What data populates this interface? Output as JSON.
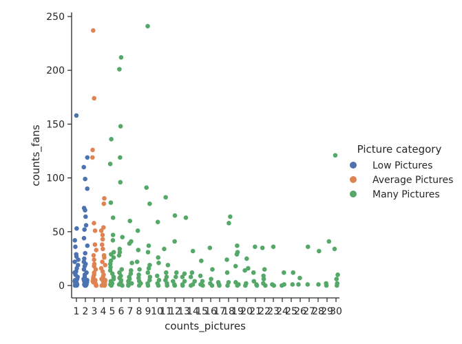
{
  "chart_data": {
    "type": "scatter",
    "xlabel": "counts_pictures",
    "ylabel": "counts_fans",
    "x_categories": [
      "1",
      "2",
      "3",
      "4",
      "5",
      "6",
      "7",
      "8",
      "9",
      "10",
      "11",
      "12",
      "13",
      "14",
      "15",
      "16",
      "17",
      "18",
      "19",
      "20",
      "21",
      "22",
      "23",
      "24",
      "25",
      "26",
      "27",
      "28",
      "29",
      "30"
    ],
    "ylim": [
      -12,
      255
    ],
    "y_ticks": [
      0,
      50,
      100,
      150,
      200,
      250
    ],
    "grid": false,
    "legend": {
      "title": "Picture category",
      "position": "right"
    },
    "colors": {
      "Low Pictures": "#4c72b0",
      "Average Pictures": "#dd8452",
      "Many Pictures": "#55a868"
    },
    "series": [
      {
        "name": "Low Pictures",
        "points": [
          [
            1,
            158
          ],
          [
            1,
            53
          ],
          [
            1,
            42
          ],
          [
            1,
            36
          ],
          [
            1,
            29
          ],
          [
            1,
            27
          ],
          [
            1,
            22
          ],
          [
            1,
            19
          ],
          [
            1,
            16
          ],
          [
            1,
            13
          ],
          [
            1,
            10
          ],
          [
            1,
            8
          ],
          [
            1,
            6
          ],
          [
            1,
            4
          ],
          [
            1,
            3
          ],
          [
            1,
            2
          ],
          [
            1,
            1
          ],
          [
            1,
            0
          ],
          [
            1,
            0
          ],
          [
            1,
            1
          ],
          [
            1,
            5
          ],
          [
            1,
            12
          ],
          [
            1,
            24
          ],
          [
            2,
            119
          ],
          [
            2,
            110
          ],
          [
            2,
            99
          ],
          [
            2,
            90
          ],
          [
            2,
            72
          ],
          [
            2,
            70
          ],
          [
            2,
            64
          ],
          [
            2,
            56
          ],
          [
            2,
            52
          ],
          [
            2,
            44
          ],
          [
            2,
            37
          ],
          [
            2,
            30
          ],
          [
            2,
            25
          ],
          [
            2,
            20
          ],
          [
            2,
            18
          ],
          [
            2,
            15
          ],
          [
            2,
            12
          ],
          [
            2,
            10
          ],
          [
            2,
            8
          ],
          [
            2,
            6
          ],
          [
            2,
            5
          ],
          [
            2,
            4
          ],
          [
            2,
            3
          ],
          [
            2,
            2
          ],
          [
            2,
            1
          ],
          [
            2,
            0
          ],
          [
            2,
            0
          ],
          [
            2,
            1
          ],
          [
            2,
            2
          ],
          [
            2,
            22
          ]
        ]
      },
      {
        "name": "Average Pictures",
        "points": [
          [
            3,
            237
          ],
          [
            3,
            174
          ],
          [
            3,
            126
          ],
          [
            3,
            119
          ],
          [
            3,
            58
          ],
          [
            3,
            51
          ],
          [
            3,
            38
          ],
          [
            3,
            33
          ],
          [
            3,
            28
          ],
          [
            3,
            24
          ],
          [
            3,
            20
          ],
          [
            3,
            18
          ],
          [
            3,
            15
          ],
          [
            3,
            12
          ],
          [
            3,
            10
          ],
          [
            3,
            8
          ],
          [
            3,
            6
          ],
          [
            3,
            5
          ],
          [
            3,
            4
          ],
          [
            3,
            3
          ],
          [
            3,
            2
          ],
          [
            3,
            1
          ],
          [
            3,
            0
          ],
          [
            3,
            0
          ],
          [
            3,
            1
          ],
          [
            4,
            81
          ],
          [
            4,
            76
          ],
          [
            4,
            54
          ],
          [
            4,
            51
          ],
          [
            4,
            47
          ],
          [
            4,
            43
          ],
          [
            4,
            38
          ],
          [
            4,
            34
          ],
          [
            4,
            28
          ],
          [
            4,
            26
          ],
          [
            4,
            22
          ],
          [
            4,
            19
          ],
          [
            4,
            16
          ],
          [
            4,
            13
          ],
          [
            4,
            10
          ],
          [
            4,
            8
          ],
          [
            4,
            6
          ],
          [
            4,
            5
          ],
          [
            4,
            4
          ],
          [
            4,
            3
          ],
          [
            4,
            2
          ],
          [
            4,
            1
          ],
          [
            4,
            0
          ],
          [
            4,
            0
          ],
          [
            4,
            1
          ]
        ]
      },
      {
        "name": "Many Pictures",
        "points": [
          [
            5,
            136
          ],
          [
            5,
            113
          ],
          [
            5,
            77
          ],
          [
            5,
            63
          ],
          [
            5,
            47
          ],
          [
            5,
            42
          ],
          [
            5,
            31
          ],
          [
            5,
            29
          ],
          [
            5,
            26
          ],
          [
            5,
            23
          ],
          [
            5,
            20
          ],
          [
            5,
            17
          ],
          [
            5,
            14
          ],
          [
            5,
            11
          ],
          [
            5,
            8
          ],
          [
            5,
            6
          ],
          [
            5,
            4
          ],
          [
            5,
            2
          ],
          [
            5,
            1
          ],
          [
            5,
            0
          ],
          [
            6,
            212
          ],
          [
            6,
            201
          ],
          [
            6,
            148
          ],
          [
            6,
            119
          ],
          [
            6,
            96
          ],
          [
            6,
            45
          ],
          [
            6,
            34
          ],
          [
            6,
            31
          ],
          [
            6,
            28
          ],
          [
            6,
            15
          ],
          [
            6,
            12
          ],
          [
            6,
            9
          ],
          [
            6,
            7
          ],
          [
            6,
            5
          ],
          [
            6,
            3
          ],
          [
            6,
            1
          ],
          [
            6,
            0
          ],
          [
            7,
            60
          ],
          [
            7,
            41
          ],
          [
            7,
            39
          ],
          [
            7,
            21
          ],
          [
            7,
            14
          ],
          [
            7,
            11
          ],
          [
            7,
            8
          ],
          [
            7,
            6
          ],
          [
            7,
            4
          ],
          [
            7,
            2
          ],
          [
            7,
            1
          ],
          [
            7,
            0
          ],
          [
            8,
            51
          ],
          [
            8,
            33
          ],
          [
            8,
            22
          ],
          [
            8,
            15
          ],
          [
            8,
            10
          ],
          [
            8,
            7
          ],
          [
            8,
            4
          ],
          [
            8,
            2
          ],
          [
            8,
            0
          ],
          [
            9,
            241
          ],
          [
            9,
            91
          ],
          [
            9,
            76
          ],
          [
            9,
            37
          ],
          [
            9,
            31
          ],
          [
            9,
            19
          ],
          [
            9,
            16
          ],
          [
            9,
            12
          ],
          [
            9,
            8
          ],
          [
            9,
            5
          ],
          [
            9,
            2
          ],
          [
            9,
            0
          ],
          [
            10,
            59
          ],
          [
            10,
            26
          ],
          [
            10,
            21
          ],
          [
            10,
            9
          ],
          [
            10,
            5
          ],
          [
            10,
            2
          ],
          [
            10,
            0
          ],
          [
            11,
            82
          ],
          [
            11,
            34
          ],
          [
            11,
            19
          ],
          [
            11,
            12
          ],
          [
            11,
            8
          ],
          [
            11,
            5
          ],
          [
            11,
            2
          ],
          [
            11,
            0
          ],
          [
            12,
            65
          ],
          [
            12,
            41
          ],
          [
            12,
            12
          ],
          [
            12,
            8
          ],
          [
            12,
            4
          ],
          [
            12,
            1
          ],
          [
            12,
            0
          ],
          [
            13,
            63
          ],
          [
            13,
            11
          ],
          [
            13,
            8
          ],
          [
            13,
            4
          ],
          [
            13,
            1
          ],
          [
            13,
            0
          ],
          [
            14,
            32
          ],
          [
            14,
            12
          ],
          [
            14,
            8
          ],
          [
            14,
            4
          ],
          [
            14,
            1
          ],
          [
            14,
            0
          ],
          [
            15,
            23
          ],
          [
            15,
            9
          ],
          [
            15,
            4
          ],
          [
            15,
            1
          ],
          [
            15,
            0
          ],
          [
            16,
            35
          ],
          [
            16,
            15
          ],
          [
            16,
            6
          ],
          [
            16,
            2
          ],
          [
            16,
            0
          ],
          [
            17,
            3
          ],
          [
            17,
            1
          ],
          [
            17,
            0
          ],
          [
            18,
            64
          ],
          [
            18,
            58
          ],
          [
            18,
            24
          ],
          [
            18,
            12
          ],
          [
            18,
            3
          ],
          [
            18,
            0
          ],
          [
            19,
            37
          ],
          [
            19,
            31
          ],
          [
            19,
            29
          ],
          [
            19,
            18
          ],
          [
            19,
            3
          ],
          [
            19,
            1
          ],
          [
            19,
            0
          ],
          [
            20,
            25
          ],
          [
            20,
            16
          ],
          [
            20,
            14
          ],
          [
            20,
            2
          ],
          [
            20,
            0
          ],
          [
            21,
            36
          ],
          [
            21,
            12
          ],
          [
            21,
            4
          ],
          [
            21,
            1
          ],
          [
            21,
            0
          ],
          [
            22,
            35
          ],
          [
            22,
            15
          ],
          [
            22,
            9
          ],
          [
            22,
            6
          ],
          [
            22,
            2
          ],
          [
            22,
            0
          ],
          [
            23,
            36
          ],
          [
            23,
            1
          ],
          [
            23,
            0
          ],
          [
            24,
            12
          ],
          [
            24,
            1
          ],
          [
            24,
            0
          ],
          [
            25,
            12
          ],
          [
            25,
            1
          ],
          [
            26,
            7
          ],
          [
            26,
            1
          ],
          [
            27,
            36
          ],
          [
            27,
            1
          ],
          [
            28,
            32
          ],
          [
            28,
            1
          ],
          [
            29,
            41
          ],
          [
            29,
            2
          ],
          [
            29,
            0
          ],
          [
            30,
            121
          ],
          [
            30,
            34
          ],
          [
            30,
            10
          ],
          [
            30,
            6
          ],
          [
            30,
            2
          ],
          [
            30,
            0
          ]
        ]
      }
    ]
  }
}
